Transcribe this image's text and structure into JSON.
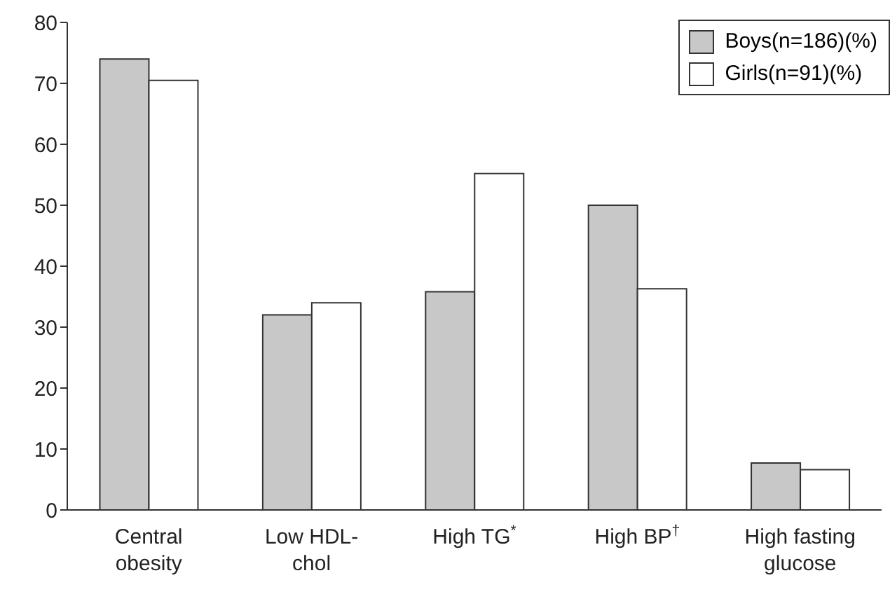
{
  "chart_data": {
    "type": "bar",
    "categories": [
      "Central obesity",
      "Low HDL-chol",
      "High TG$^{*}$",
      "High BP$^{†}$",
      "High fasting glucose"
    ],
    "series": [
      {
        "name": "Boys(n=186)(%)",
        "color": "#c8c8c8",
        "values": [
          74,
          32,
          35.8,
          50,
          7.7
        ]
      },
      {
        "name": "Girls(n=91)(%)",
        "color": "#ffffff",
        "values": [
          70.5,
          34,
          55.2,
          36.3,
          6.6
        ]
      }
    ],
    "ylim": [
      0,
      80
    ],
    "yticks": [
      0,
      10,
      20,
      30,
      40,
      50,
      60,
      70,
      80
    ],
    "grid": false,
    "legend": "top right"
  }
}
